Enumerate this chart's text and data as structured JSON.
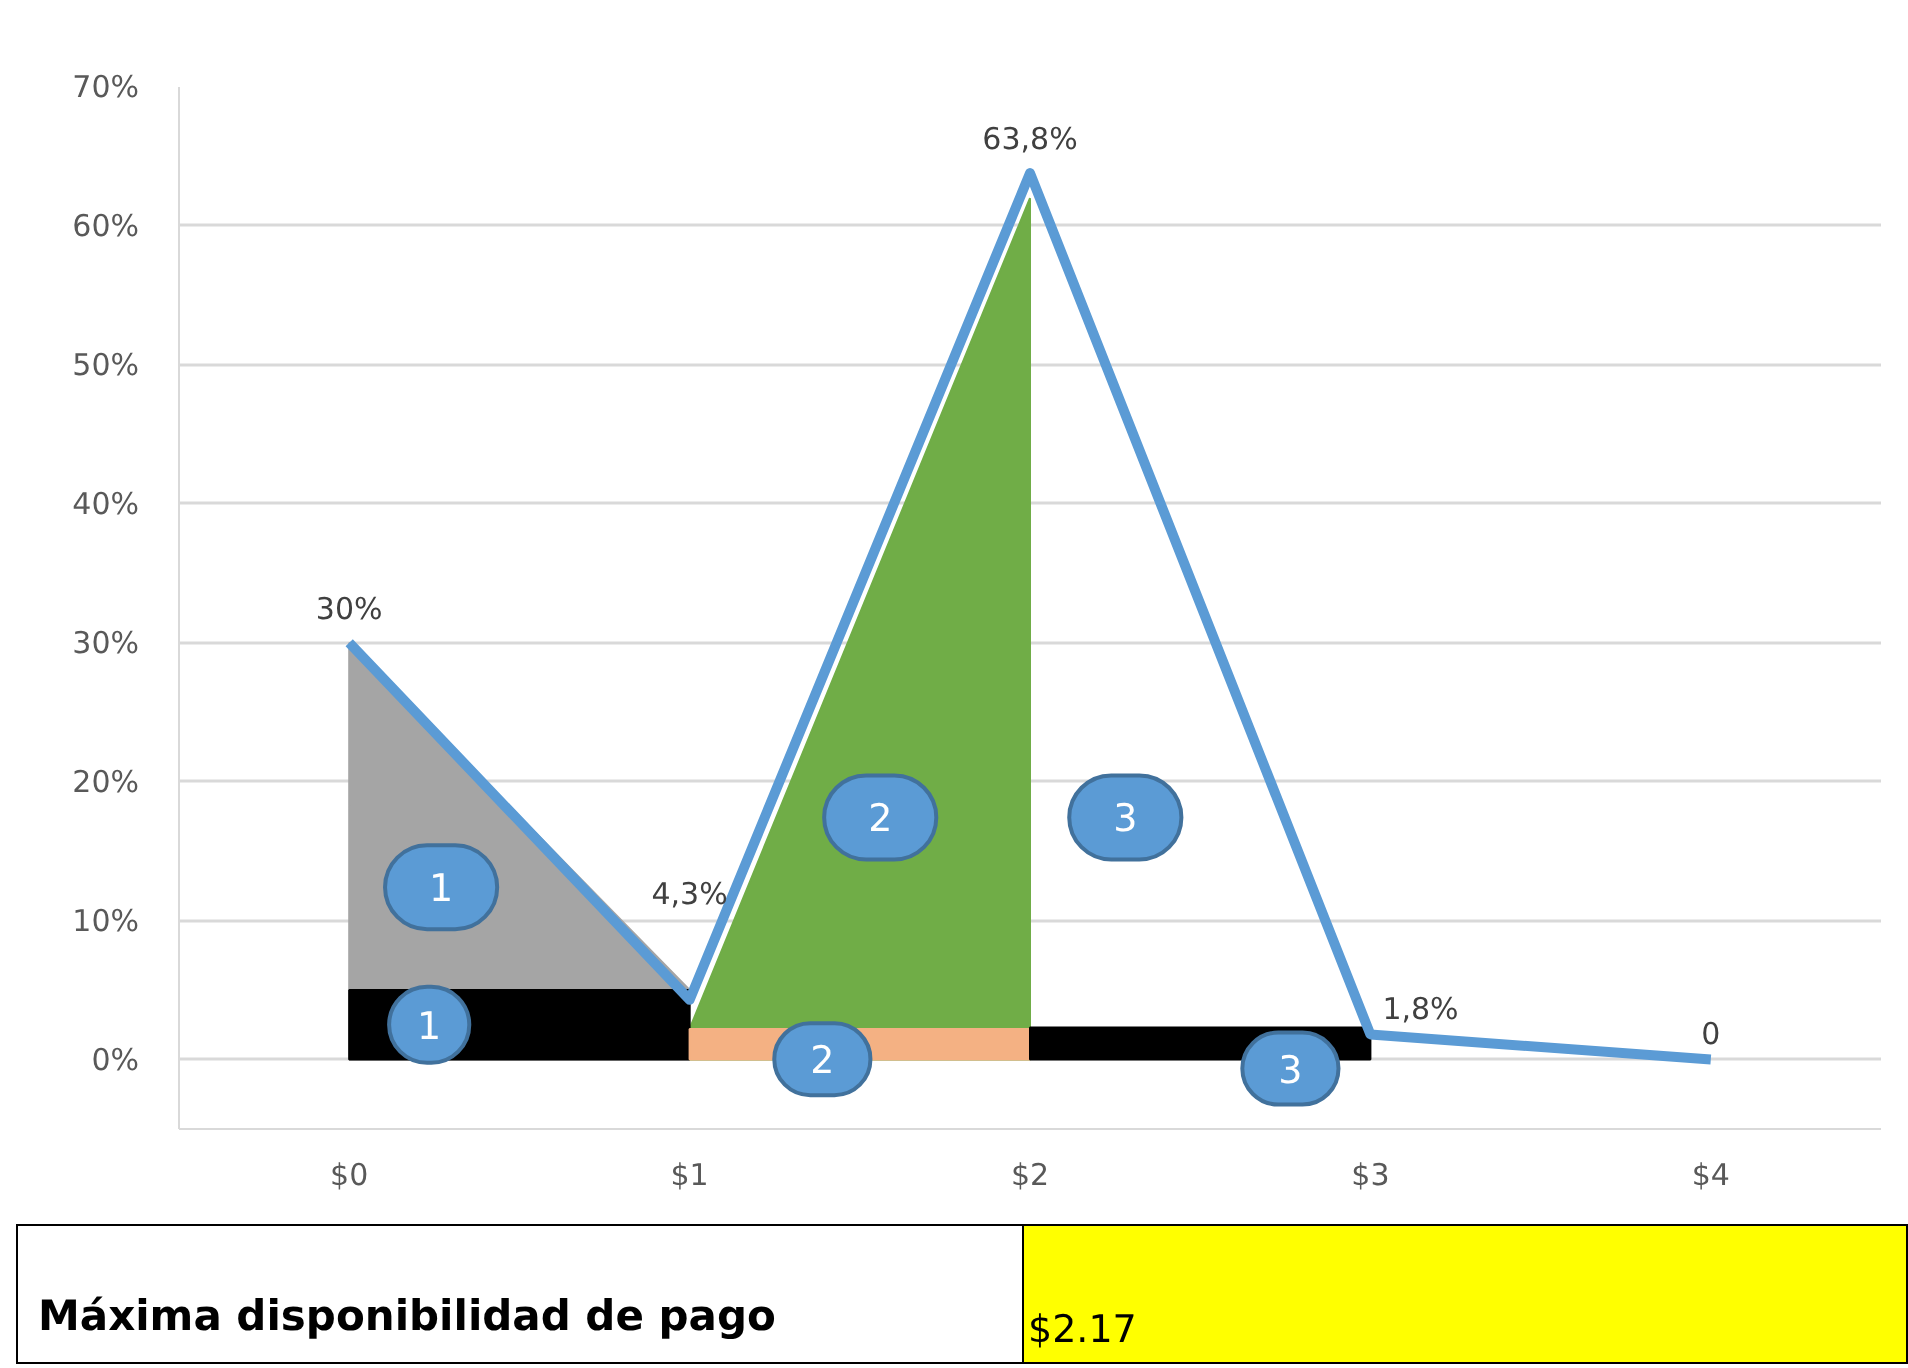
{
  "chart_data": {
    "type": "line",
    "x": [
      0,
      1,
      2,
      3,
      4
    ],
    "xlim": [
      -0.5,
      4.5
    ],
    "xticks": [
      {
        "value": 0,
        "label": "$0"
      },
      {
        "value": 1,
        "label": "$1"
      },
      {
        "value": 2,
        "label": "$2"
      },
      {
        "value": 3,
        "label": "$3"
      },
      {
        "value": 4,
        "label": "$4"
      }
    ],
    "ylim": [
      -5,
      70
    ],
    "yticks": [
      {
        "value": 0,
        "label": "0%"
      },
      {
        "value": 10,
        "label": "10%"
      },
      {
        "value": 20,
        "label": "20%"
      },
      {
        "value": 30,
        "label": "30%"
      },
      {
        "value": 40,
        "label": "40%"
      },
      {
        "value": 50,
        "label": "50%"
      },
      {
        "value": 60,
        "label": "60%"
      },
      {
        "value": 70,
        "label": "70%"
      }
    ],
    "grid": "y",
    "series": [
      {
        "type": "area",
        "color": "#a5a5a5",
        "x": [
          0,
          1
        ],
        "values": [
          30,
          5
        ]
      },
      {
        "type": "area",
        "color": "#70ad47",
        "x": [
          1,
          2
        ],
        "values": [
          2.2,
          62
        ]
      },
      {
        "type": "area",
        "color": "#000000",
        "x": [
          0,
          1
        ],
        "values": [
          5,
          5
        ]
      },
      {
        "type": "area",
        "color": "#f4b183",
        "x": [
          1,
          2
        ],
        "values": [
          2.2,
          2.2
        ]
      },
      {
        "type": "area",
        "color": "#000000",
        "x": [
          2,
          3
        ],
        "values": [
          2.3,
          2.3
        ]
      },
      {
        "color": "#5b9bd5",
        "values": [
          30,
          4.3,
          63.8,
          1.8,
          0
        ],
        "value_labels": [
          "30%",
          "4,3%",
          "63,8%",
          "1,8%",
          "0"
        ]
      }
    ],
    "annotations": [
      "1",
      "2",
      "3",
      "1",
      "2",
      "3",
      "Máxima disponibilidad de pago",
      "$2.17"
    ]
  }
}
